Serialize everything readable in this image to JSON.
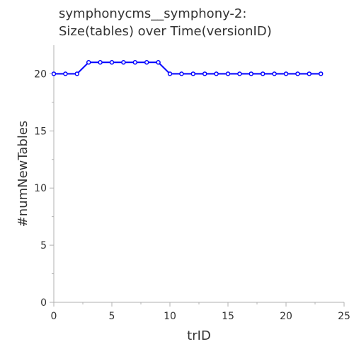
{
  "chart_data": {
    "type": "line",
    "title_lines": [
      "symphonycms__symphony-2:",
      "Size(tables) over Time(versionID)"
    ],
    "xlabel": "trID",
    "ylabel": "#numNewTables",
    "xlim": [
      0,
      25
    ],
    "ylim": [
      0,
      22.5
    ],
    "xticks": [
      0,
      5,
      10,
      15,
      20,
      25
    ],
    "yticks": [
      0,
      5,
      10,
      15,
      20
    ],
    "grid": false,
    "series_color": "#0000ff",
    "x": [
      0,
      1,
      2,
      3,
      4,
      5,
      6,
      7,
      8,
      9,
      10,
      11,
      12,
      13,
      14,
      15,
      16,
      17,
      18,
      19,
      20,
      21,
      22,
      23
    ],
    "y": [
      20,
      20,
      20,
      21,
      21,
      21,
      21,
      21,
      21,
      21,
      20,
      20,
      20,
      20,
      20,
      20,
      20,
      20,
      20,
      20,
      20,
      20,
      20,
      20
    ]
  }
}
